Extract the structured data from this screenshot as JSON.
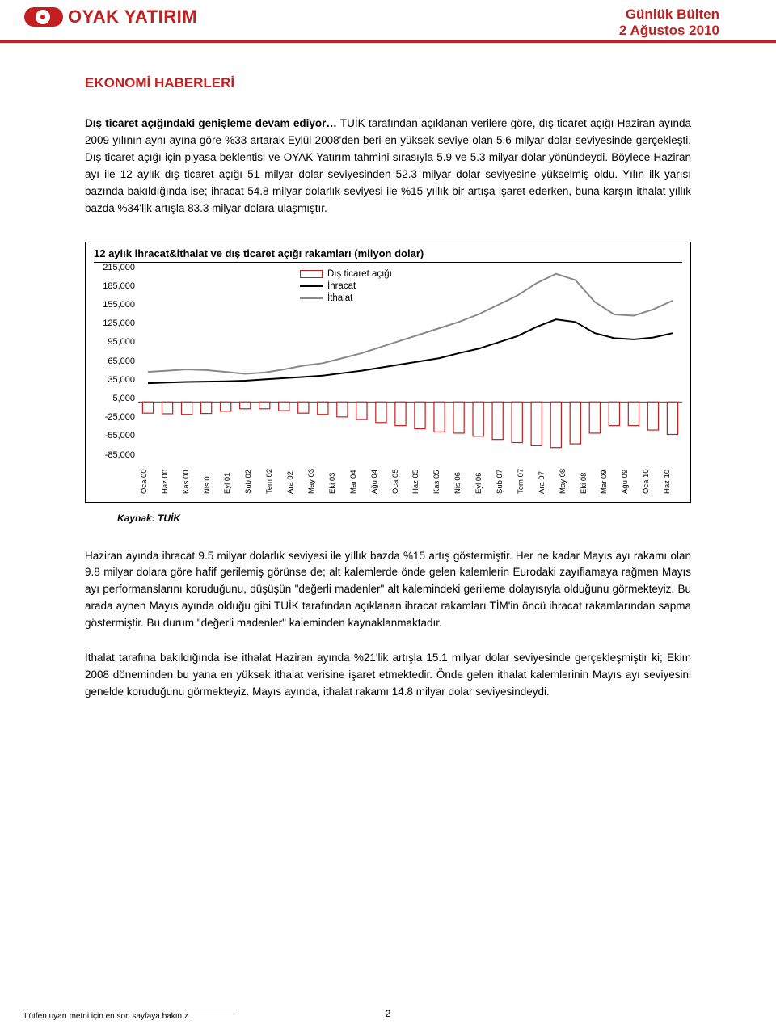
{
  "header": {
    "brand": "OYAK YATIRIM",
    "bulletin_title": "Günlük Bülten",
    "bulletin_date": "2 Ağustos 2010"
  },
  "section_title": "EKONOMİ HABERLERİ",
  "para1_lead": "Dış ticaret açığındaki genişleme devam ediyor…",
  "para1_body": " TUİK tarafından açıklanan verilere göre, dış ticaret açığı Haziran ayında 2009 yılının aynı ayına göre %33 artarak Eylül 2008'den beri en yüksek seviye olan 5.6 milyar dolar seviyesinde gerçekleşti. Dış ticaret açığı için piyasa beklentisi ve OYAK Yatırım tahmini sırasıyla 5.9 ve 5.3 milyar dolar yönündeydi. Böylece Haziran ayı ile 12 aylık dış ticaret açığı 51 milyar dolar seviyesinden 52.3 milyar dolar seviyesine yükselmiş oldu. Yılın ilk yarısı bazında bakıldığında ise; ihracat 54.8 milyar dolarlık seviyesi ile %15 yıllık bir artışa işaret ederken, buna karşın ithalat yıllık bazda %34'lik artışla 83.3 milyar dolara ulaşmıştır.",
  "chart": {
    "title": "12 aylık ihracat&ithalat ve dış ticaret açığı rakamları (milyon dolar)",
    "legend": {
      "deficit": "Dış ticaret açığı",
      "exports": "İhracat",
      "imports": "İthalat"
    },
    "colors": {
      "deficit": "#c41e1e",
      "exports": "#000000",
      "imports": "#888888",
      "grid": "#000000",
      "bg": "#ffffff"
    },
    "y_ticks": [
      "215,000",
      "185,000",
      "155,000",
      "125,000",
      "95,000",
      "65,000",
      "35,000",
      "5,000",
      "-25,000",
      "-55,000",
      "-85,000"
    ],
    "y_min": -85000,
    "y_max": 215000,
    "x_labels": [
      "Oca 00",
      "Haz 00",
      "Kas 00",
      "Nis 01",
      "Eyl 01",
      "Şub 02",
      "Tem 02",
      "Ara 02",
      "May 03",
      "Eki 03",
      "Mar 04",
      "Ağu 04",
      "Oca 05",
      "Haz 05",
      "Kas 05",
      "Nis 06",
      "Eyl 06",
      "Şub 07",
      "Tem 07",
      "Ara 07",
      "May 08",
      "Eki 08",
      "Mar 09",
      "Ağu 09",
      "Oca 10",
      "Haz 10"
    ],
    "exports_series": [
      30000,
      31000,
      32000,
      32500,
      33000,
      34000,
      36000,
      38000,
      40000,
      42000,
      46000,
      50000,
      55000,
      60000,
      65000,
      70000,
      78000,
      85000,
      95000,
      105000,
      120000,
      132000,
      128000,
      110000,
      102000,
      100000,
      103000,
      110000
    ],
    "imports_series": [
      48000,
      50000,
      52000,
      51000,
      48000,
      45000,
      47000,
      52000,
      58000,
      62000,
      70000,
      78000,
      88000,
      98000,
      108000,
      118000,
      128000,
      140000,
      155000,
      170000,
      190000,
      205000,
      195000,
      160000,
      140000,
      138000,
      148000,
      162000
    ],
    "deficit_series": [
      -18000,
      -19000,
      -20000,
      -18500,
      -15000,
      -11000,
      -11000,
      -14000,
      -18000,
      -20000,
      -24000,
      -28000,
      -33000,
      -38000,
      -43000,
      -48000,
      -50000,
      -55000,
      -60000,
      -65000,
      -70000,
      -73000,
      -67000,
      -50000,
      -38000,
      -38000,
      -45000,
      -52000
    ],
    "source": "Kaynak: TUİK"
  },
  "para2": "Haziran ayında ihracat 9.5 milyar dolarlık seviyesi ile yıllık bazda %15 artış göstermiştir. Her ne kadar Mayıs ayı rakamı olan 9.8 milyar dolara göre hafif gerilemiş görünse de; alt kalemlerde önde gelen kalemlerin Eurodaki zayıflamaya rağmen Mayıs ayı performanslarını koruduğunu, düşüşün \"değerli madenler\" alt kalemindeki gerileme dolayısıyla olduğunu görmekteyiz. Bu arada aynen Mayıs ayında olduğu gibi TUİK tarafından açıklanan ihracat rakamları TİM'in öncü ihracat rakamlarından sapma göstermiştir. Bu durum \"değerli madenler\" kaleminden kaynaklanmaktadır.",
  "para3": "İthalat tarafına bakıldığında ise ithalat Haziran ayında %21'lik artışla 15.1 milyar dolar seviyesinde gerçekleşmiştir ki; Ekim 2008 döneminden bu yana en yüksek ithalat verisine işaret etmektedir. Önde gelen ithalat kalemlerinin Mayıs ayı seviyesini genelde koruduğunu görmekteyiz. Mayıs ayında, ithalat rakamı 14.8 milyar dolar seviyesindeydi.",
  "footer_note": "Lütfen uyarı metni için en son sayfaya bakınız.",
  "page_number": "2"
}
